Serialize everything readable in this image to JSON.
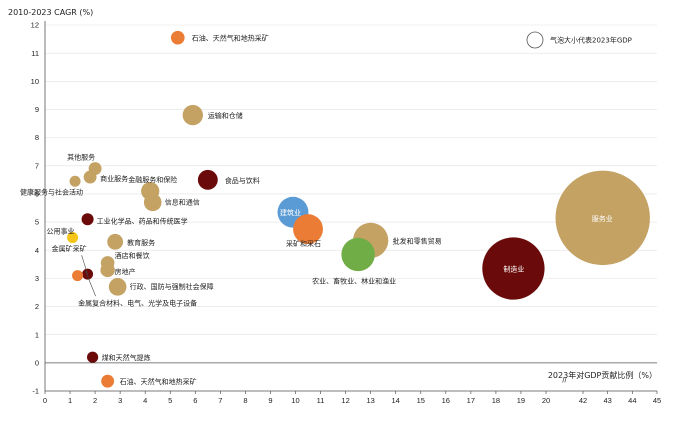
{
  "chart_data": {
    "type": "scatter",
    "subtype": "bubble",
    "ylabel": "2010-2023 CAGR (%)",
    "xlabel": "2023年对GDP贡献比例（%）",
    "legend_label": "气泡大小代表2023年GDP",
    "ylim": [
      -1,
      12
    ],
    "yticks": [
      "-1",
      "0",
      "1",
      "2",
      "3",
      "4",
      "5",
      "6",
      "7",
      "8",
      "9",
      "10",
      "11",
      "12"
    ],
    "xticks": [
      "0",
      "1",
      "2",
      "3",
      "4",
      "5",
      "6",
      "7",
      "8",
      "9",
      "10",
      "11",
      "12",
      "13",
      "14",
      "15",
      "16",
      "17",
      "18",
      "19",
      "20",
      "42",
      "43",
      "44",
      "45"
    ],
    "axis_break": "//",
    "colors": {
      "tan": "#c3a264",
      "orange": "#ea7c35",
      "darkred": "#6b0a0a",
      "blue": "#5b9bd5",
      "green": "#70ad47",
      "yellow": "#f5c518",
      "axis": "#555555",
      "grid": "#e2e2e2"
    },
    "points": [
      {
        "name": "石油、天然气和地热采矿",
        "x": 5.3,
        "y": 11.55,
        "color": "orange",
        "size": 0.9
      },
      {
        "name": "运输和仓储",
        "x": 5.9,
        "y": 8.8,
        "color": "tan",
        "size": 2.0
      },
      {
        "name": "食品与饮料",
        "x": 6.5,
        "y": 6.5,
        "color": "darkred",
        "size": 1.9
      },
      {
        "name": "其他服务",
        "x": 2.0,
        "y": 6.9,
        "color": "tan",
        "size": 0.8
      },
      {
        "name": "商业服务",
        "x": 1.8,
        "y": 6.6,
        "color": "tan",
        "size": 0.8
      },
      {
        "name": "健康服务与社会活动",
        "x": 1.2,
        "y": 6.45,
        "color": "tan",
        "size": 0.5
      },
      {
        "name": "金融服务和保险",
        "x": 4.2,
        "y": 6.1,
        "color": "tan",
        "size": 1.6
      },
      {
        "name": "信息和通信",
        "x": 4.3,
        "y": 5.7,
        "color": "tan",
        "size": 1.5
      },
      {
        "name": "建筑业",
        "x": 9.9,
        "y": 5.35,
        "color": "blue",
        "size": 4.6
      },
      {
        "name": "工业化学品、药品和传统医学",
        "x": 1.7,
        "y": 5.1,
        "color": "darkred",
        "size": 0.7
      },
      {
        "name": "采矿和采石",
        "x": 10.5,
        "y": 4.75,
        "color": "orange",
        "size": 4.3
      },
      {
        "name": "公用事业",
        "x": 1.1,
        "y": 4.45,
        "color": "yellow",
        "size": 0.4
      },
      {
        "name": "批发和零售贸易",
        "x": 13.0,
        "y": 4.35,
        "color": "tan",
        "size": 6.0
      },
      {
        "name": "教育服务",
        "x": 2.8,
        "y": 4.3,
        "color": "tan",
        "size": 1.2
      },
      {
        "name": "农业、畜牧业、林业和渔业",
        "x": 12.5,
        "y": 3.85,
        "color": "green",
        "size": 5.4
      },
      {
        "name": "服务业",
        "x": 42.8,
        "y": 5.15,
        "color": "tan",
        "size": 43.0
      },
      {
        "name": "制造业",
        "x": 18.7,
        "y": 3.35,
        "color": "darkred",
        "size": 18.7
      },
      {
        "name": "酒店和餐饮",
        "x": 2.5,
        "y": 3.55,
        "color": "tan",
        "size": 0.9
      },
      {
        "name": "房地产",
        "x": 2.5,
        "y": 3.3,
        "color": "tan",
        "size": 1.0
      },
      {
        "name": "金属矿采矿",
        "x": 1.7,
        "y": 3.15,
        "color": "darkred",
        "size": 0.5
      },
      {
        "name": "",
        "x": 1.3,
        "y": 3.1,
        "color": "orange",
        "size": 0.4
      },
      {
        "name": "行政、国防与强制社会保障",
        "x": 2.9,
        "y": 2.7,
        "color": "tan",
        "size": 1.5
      },
      {
        "name": "金属复合材料、电气、光学及电子设备",
        "x": 1.6,
        "y": 2.15,
        "color": "tan",
        "size": 0.0
      },
      {
        "name": "煤和天然气提炼",
        "x": 1.9,
        "y": 0.2,
        "color": "darkred",
        "size": 0.6
      },
      {
        "name": "石油、天然气和地热采矿",
        "x": 2.5,
        "y": -0.65,
        "color": "orange",
        "size": 0.8
      }
    ]
  }
}
